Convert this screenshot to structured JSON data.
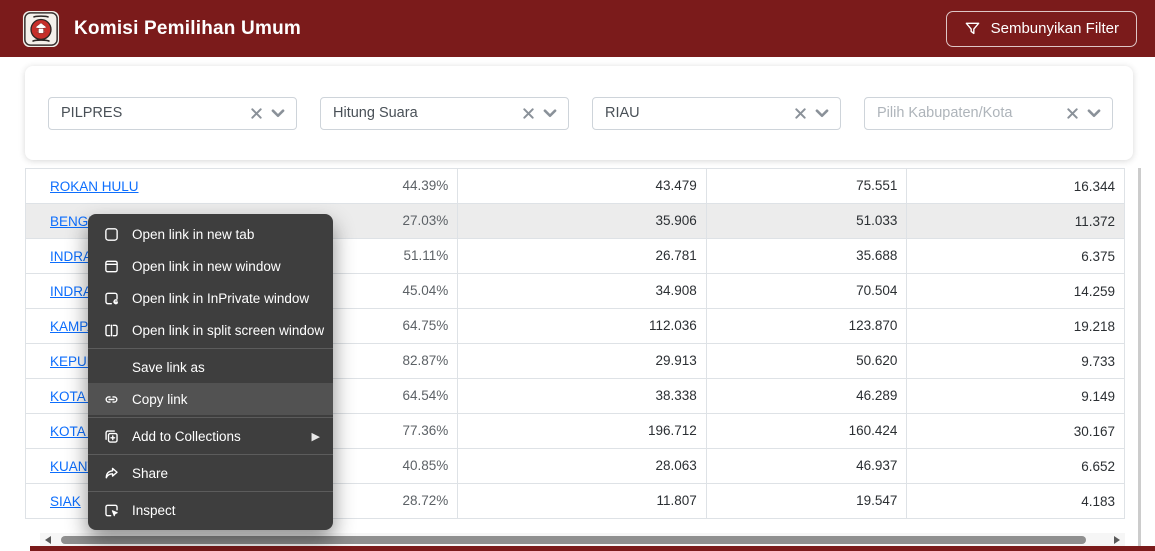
{
  "colors": {
    "accent": "#7b1b1b",
    "link": "#0d6efd",
    "menu_bg": "#3e3e3e",
    "menu_highlight": "#525252"
  },
  "header": {
    "logo_icon": "kpu-logo",
    "title": "Komisi Pemilihan Umum",
    "filter_button_label": "Sembunyikan Filter",
    "filter_button_icon": "funnel-icon"
  },
  "filters": [
    {
      "name": "filter-jenis-pemilu",
      "value": "PILPRES",
      "is_placeholder": false,
      "clearable": false
    },
    {
      "name": "filter-jenis-data",
      "value": "Hitung Suara",
      "is_placeholder": false,
      "clearable": false
    },
    {
      "name": "filter-provinsi",
      "value": "RIAU",
      "is_placeholder": false,
      "clearable": true
    },
    {
      "name": "filter-kabupaten",
      "value": "Pilih Kabupaten/Kota",
      "is_placeholder": true,
      "clearable": false
    }
  ],
  "table": {
    "rows": [
      {
        "name": "ROKAN HULU",
        "pct": "44.39%",
        "v1": "43.479",
        "v2": "75.551",
        "v3": "16.344",
        "highlight": false
      },
      {
        "name": "BENGKALIS",
        "pct": "27.03%",
        "v1": "35.906",
        "v2": "51.033",
        "v3": "11.372",
        "highlight": true
      },
      {
        "name": "INDRAGIRI HILIR",
        "pct": "51.11%",
        "v1": "26.781",
        "v2": "35.688",
        "v3": "6.375",
        "highlight": false
      },
      {
        "name": "INDRAGIRI HULU",
        "pct": "45.04%",
        "v1": "34.908",
        "v2": "70.504",
        "v3": "14.259",
        "highlight": false
      },
      {
        "name": "KAMPAR",
        "pct": "64.75%",
        "v1": "112.036",
        "v2": "123.870",
        "v3": "19.218",
        "highlight": false
      },
      {
        "name": "KEPULAUAN MERANTI",
        "pct": "82.87%",
        "v1": "29.913",
        "v2": "50.620",
        "v3": "9.733",
        "highlight": false
      },
      {
        "name": "KOTA DUMAI",
        "pct": "64.54%",
        "v1": "38.338",
        "v2": "46.289",
        "v3": "9.149",
        "highlight": false
      },
      {
        "name": "KOTA PEKANBARU",
        "pct": "77.36%",
        "v1": "196.712",
        "v2": "160.424",
        "v3": "30.167",
        "highlight": false
      },
      {
        "name": "KUANTAN SINGINGI",
        "pct": "40.85%",
        "v1": "28.063",
        "v2": "46.937",
        "v3": "6.652",
        "highlight": false
      },
      {
        "name": "SIAK",
        "pct": "28.72%",
        "v1": "11.807",
        "v2": "19.547",
        "v3": "4.183",
        "highlight": false
      }
    ]
  },
  "context_menu": {
    "groups": [
      [
        {
          "label": "Open link in new tab",
          "icon": "new-tab-icon"
        },
        {
          "label": "Open link in new window",
          "icon": "new-window-icon"
        },
        {
          "label": "Open link in InPrivate window",
          "icon": "inprivate-icon"
        },
        {
          "label": "Open link in split screen window",
          "icon": "split-screen-icon"
        }
      ],
      [
        {
          "label": "Save link as",
          "icon": null
        },
        {
          "label": "Copy link",
          "icon": "link-icon",
          "highlight": true
        }
      ],
      [
        {
          "label": "Add to Collections",
          "icon": "collections-icon",
          "submenu": true
        }
      ],
      [
        {
          "label": "Share",
          "icon": "share-icon"
        }
      ],
      [
        {
          "label": "Inspect",
          "icon": "inspect-icon"
        }
      ]
    ]
  }
}
